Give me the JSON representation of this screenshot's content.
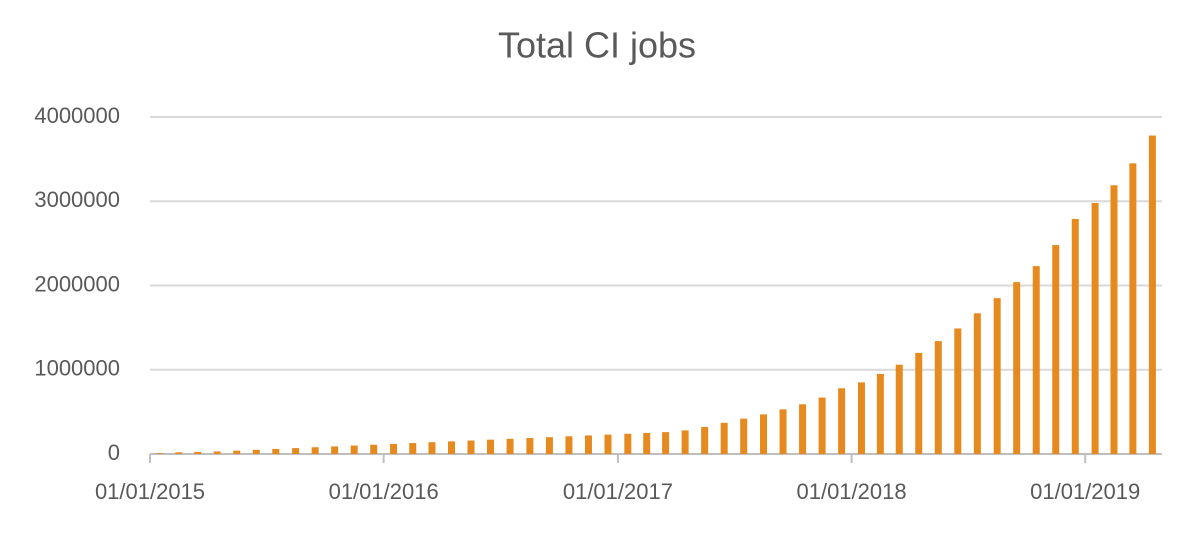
{
  "chart_data": {
    "type": "bar",
    "title": "Total CI jobs",
    "x": [
      "01/01/2015",
      "02/01/2015",
      "03/01/2015",
      "04/01/2015",
      "05/01/2015",
      "06/01/2015",
      "07/01/2015",
      "08/01/2015",
      "09/01/2015",
      "10/01/2015",
      "11/01/2015",
      "12/01/2015",
      "01/01/2016",
      "02/01/2016",
      "03/01/2016",
      "04/01/2016",
      "05/01/2016",
      "06/01/2016",
      "07/01/2016",
      "08/01/2016",
      "09/01/2016",
      "10/01/2016",
      "11/01/2016",
      "12/01/2016",
      "01/01/2017",
      "02/01/2017",
      "03/01/2017",
      "04/01/2017",
      "05/01/2017",
      "06/01/2017",
      "07/01/2017",
      "08/01/2017",
      "09/01/2017",
      "10/01/2017",
      "11/01/2017",
      "12/01/2017",
      "01/01/2018",
      "02/01/2018",
      "03/01/2018",
      "04/01/2018",
      "05/01/2018",
      "06/01/2018",
      "07/01/2018",
      "08/01/2018",
      "09/01/2018",
      "10/01/2018",
      "11/01/2018",
      "12/01/2018",
      "01/01/2019",
      "02/01/2019",
      "03/01/2019",
      "04/01/2019"
    ],
    "values": [
      10000,
      20000,
      25000,
      30000,
      40000,
      50000,
      60000,
      70000,
      80000,
      90000,
      100000,
      110000,
      120000,
      130000,
      140000,
      150000,
      160000,
      170000,
      180000,
      190000,
      200000,
      210000,
      220000,
      230000,
      240000,
      250000,
      260000,
      280000,
      320000,
      370000,
      420000,
      470000,
      530000,
      590000,
      670000,
      780000,
      850000,
      950000,
      1060000,
      1200000,
      1340000,
      1490000,
      1670000,
      1850000,
      2040000,
      2230000,
      2480000,
      2790000,
      2980000,
      3190000,
      3450000,
      3780000
    ],
    "color": "#e6891e",
    "xlim": [
      "01/01/2015",
      "05/01/2019"
    ],
    "xticks": [
      "01/01/2015",
      "01/01/2016",
      "01/01/2017",
      "01/01/2018",
      "01/01/2019"
    ],
    "ylim": [
      0,
      4000000
    ],
    "yticks": [
      0,
      1000000,
      2000000,
      3000000,
      4000000
    ],
    "grid": true
  }
}
